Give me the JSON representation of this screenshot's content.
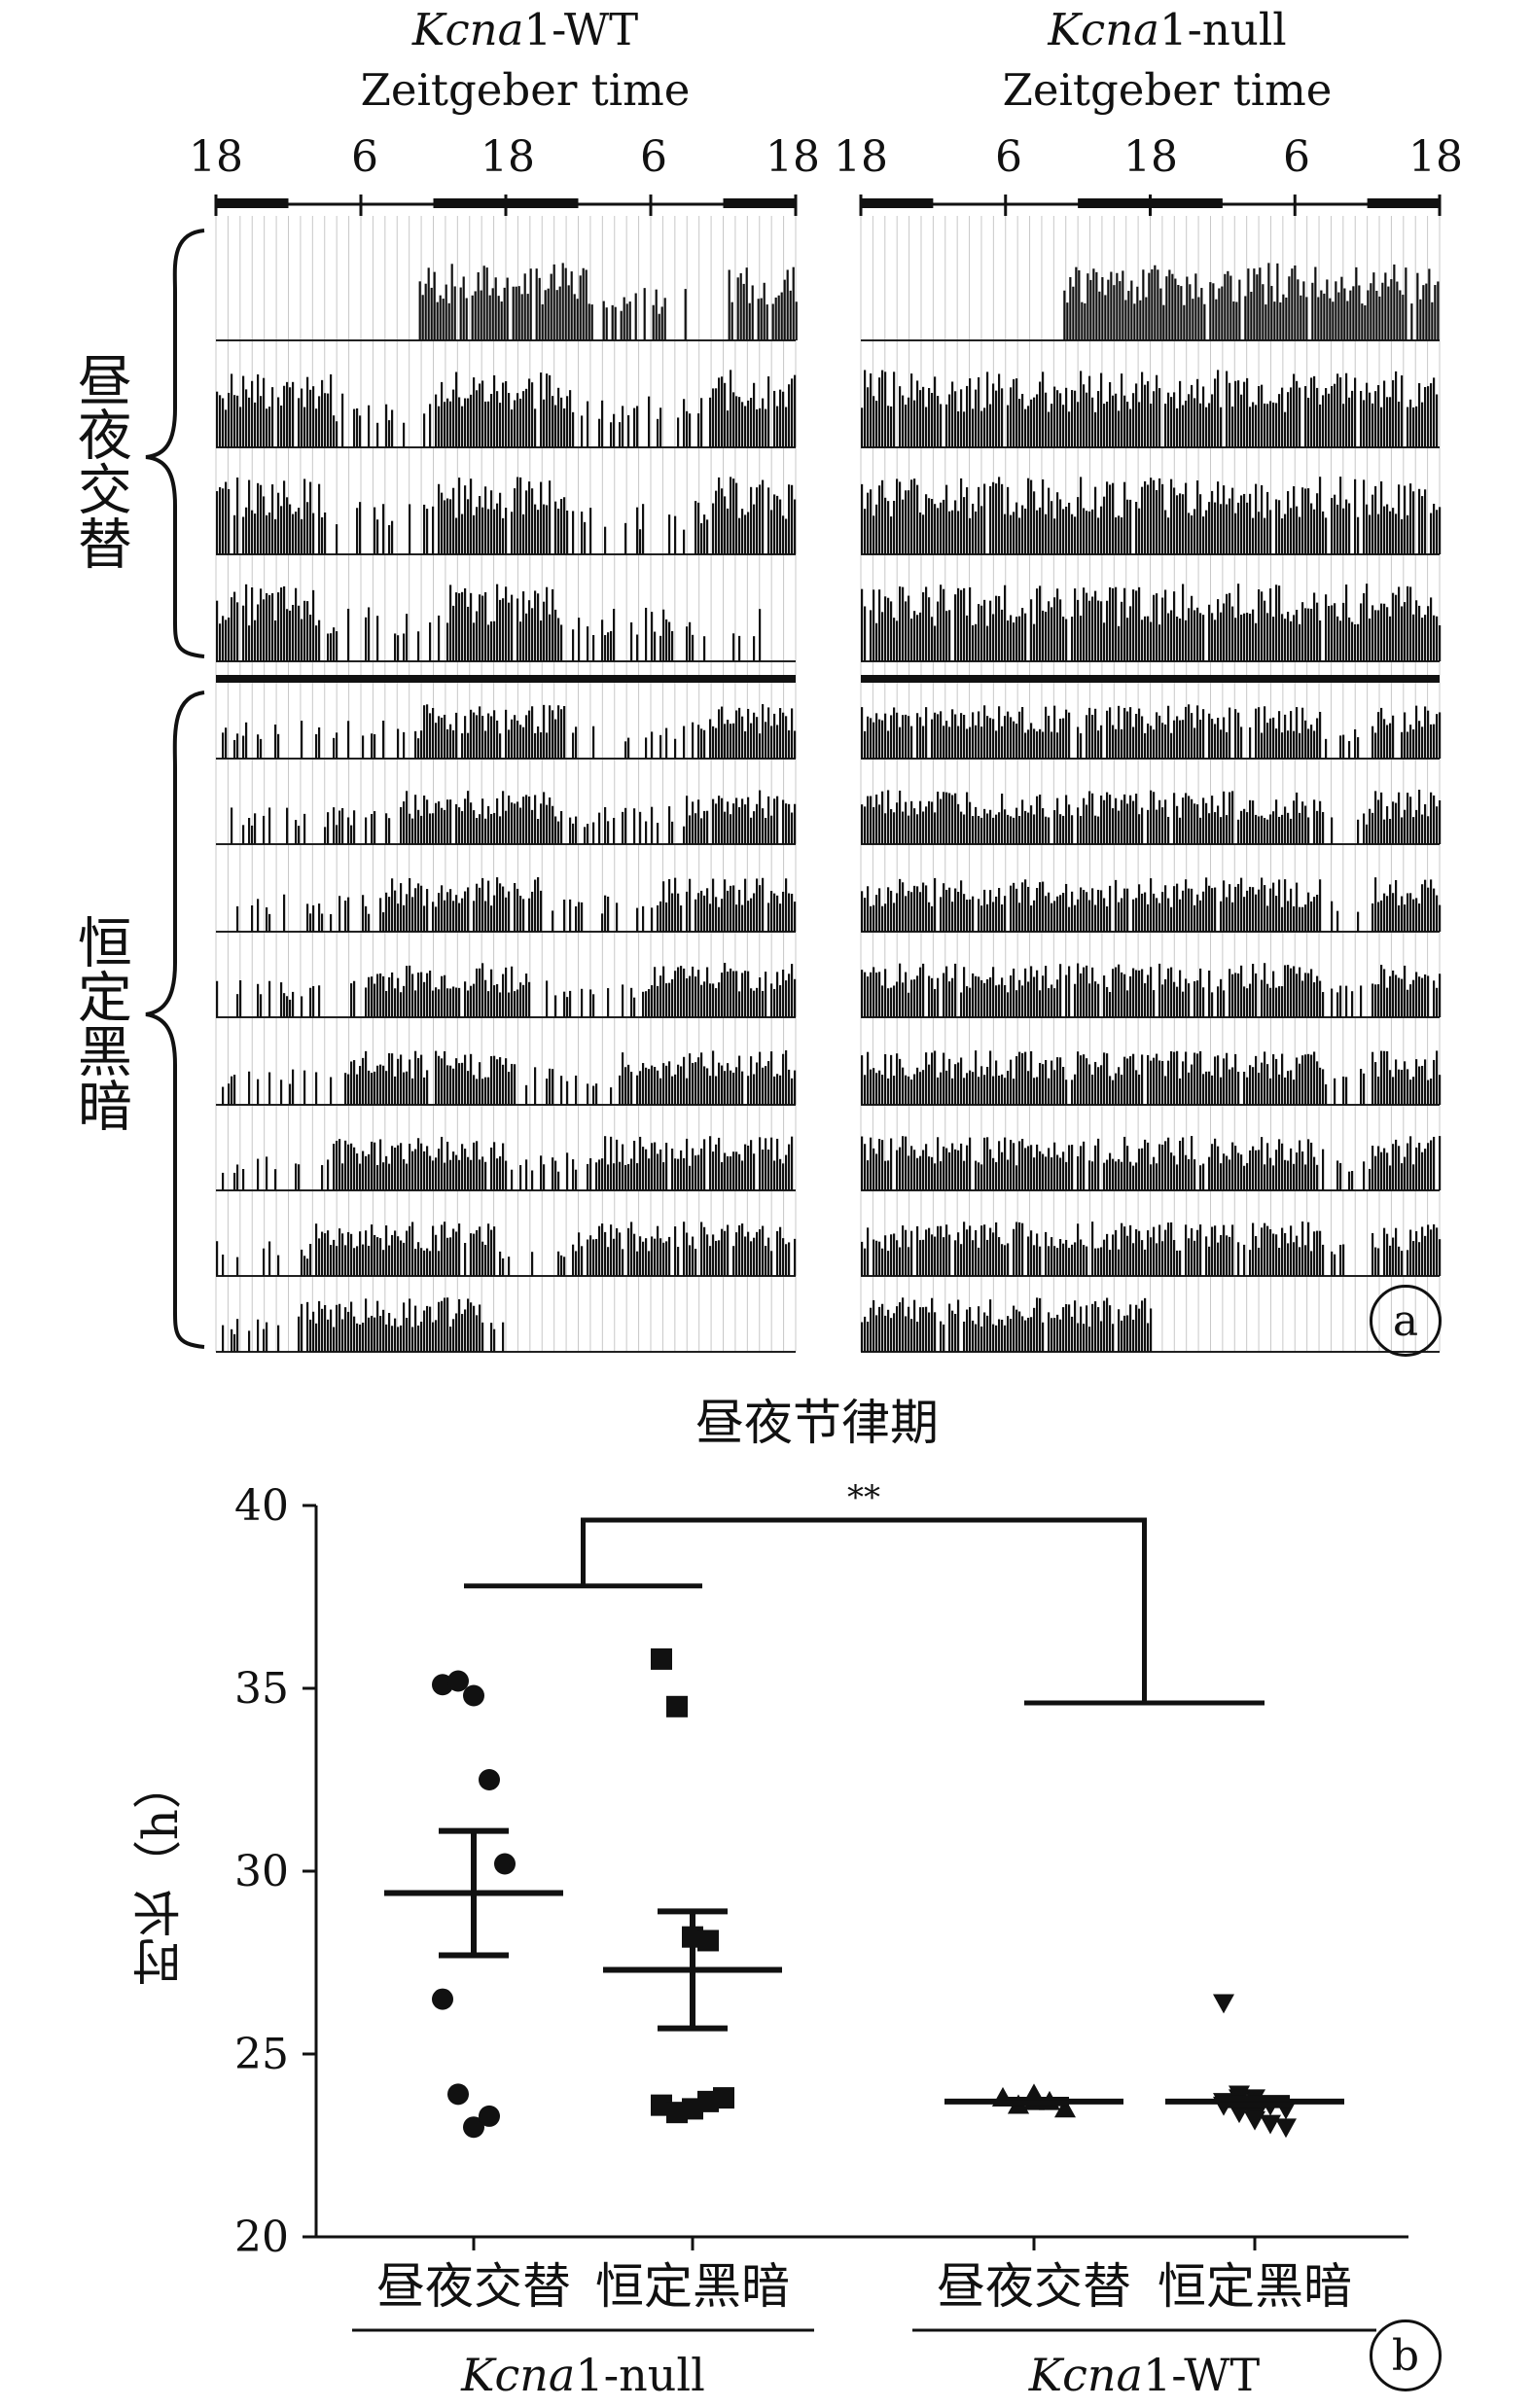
{
  "panel_a": {
    "label": "a",
    "axis_title": "Zeitgeber time",
    "tick_labels": [
      "18",
      "6",
      "18",
      "6",
      "18"
    ],
    "condition_labels": {
      "light_dark": "昼夜交替",
      "constant_dark": "恒定黑暗"
    },
    "actograms": [
      {
        "genotype_italic": "Kcna",
        "genotype_rest": "1-WT",
        "ld_rows": 4,
        "dd_rows": 8
      },
      {
        "genotype_italic": "Kcna",
        "genotype_rest": "1-null",
        "ld_rows": 4,
        "dd_rows": 8
      }
    ]
  },
  "chart_data": {
    "type": "scatter",
    "label": "b",
    "title": "昼夜节律期",
    "ylabel": "时长（h）",
    "ylim": [
      20,
      40
    ],
    "yticks": [
      20,
      25,
      30,
      35,
      40
    ],
    "categories": [
      "昼夜交替",
      "恒定黑暗",
      "昼夜交替",
      "恒定黑暗"
    ],
    "groups": [
      {
        "genotype_italic": "Kcna",
        "genotype_rest": "1-null",
        "categories": [
          0,
          1
        ]
      },
      {
        "genotype_italic": "Kcna",
        "genotype_rest": "1-WT",
        "categories": [
          2,
          3
        ]
      }
    ],
    "series": [
      {
        "category": 0,
        "marker": "circle",
        "mean": 29.4,
        "sem": 1.7,
        "values": [
          35.1,
          35.2,
          34.8,
          32.5,
          30.2,
          26.5,
          23.9,
          23.0,
          23.3
        ]
      },
      {
        "category": 1,
        "marker": "square",
        "mean": 27.3,
        "sem": 1.6,
        "values": [
          35.8,
          34.5,
          28.2,
          28.1,
          23.8,
          23.6,
          23.4,
          23.5,
          23.7
        ]
      },
      {
        "category": 2,
        "marker": "triangle-up",
        "mean": 23.7,
        "sem": 0.05,
        "values": [
          23.8,
          23.6,
          23.9,
          23.7,
          23.5,
          23.8,
          23.6,
          23.7
        ]
      },
      {
        "category": 3,
        "marker": "triangle-down",
        "mean": 23.7,
        "sem": 0.1,
        "values": [
          26.4,
          23.9,
          23.8,
          23.6,
          23.5,
          23.7,
          23.4,
          23.3,
          23.1,
          23.0,
          23.6,
          23.8,
          23.2
        ]
      }
    ],
    "significance": "**"
  }
}
